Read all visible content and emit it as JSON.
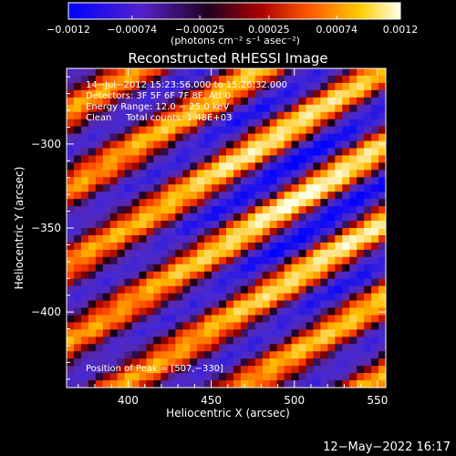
{
  "colorbar": {
    "ticks": [
      "−0.0012",
      "−0.00074",
      "−0.00025",
      "0.00025",
      "0.00074",
      "0.0012"
    ],
    "tick_values": [
      -0.0012,
      -0.00074,
      -0.00025,
      0.00025,
      0.00074,
      0.0012
    ],
    "range": [
      -0.0012,
      0.0012
    ],
    "unit_label": "(photons cm⁻² s⁻¹ asec⁻²)",
    "palette": [
      "#0000ff",
      "#6633cc",
      "#cc0033",
      "#ff6600",
      "#ffdd00",
      "#ffffff"
    ]
  },
  "chart_data": {
    "type": "heatmap",
    "title": "Reconstructed RHESSI Image",
    "xlabel": "Heliocentric X (arcsec)",
    "ylabel": "Heliocentric Y (arcsec)",
    "xlim": [
      363,
      555
    ],
    "ylim": [
      -445,
      -255
    ],
    "xticks": [
      400,
      450,
      500,
      550
    ],
    "yticks": [
      -300,
      -350,
      -400
    ],
    "xtick_labels": [
      "400",
      "450",
      "500",
      "550"
    ],
    "ytick_labels": [
      "−300",
      "−350",
      "−400"
    ],
    "annotations": {
      "line1": "14−Jul−2012 15:23:56.000 to 15:26:32.000",
      "line2": "Detectors: 3F 5F 6F 7F 8F, Att 0",
      "line3": "Energy Range: 12.0 − 25.0 keV",
      "line4": "Clean     Total counts: 1.48E+03"
    },
    "peak_label": "Position of Peak = [507,−330]",
    "peak": [
      507,
      -330
    ]
  },
  "footer": {
    "timestamp": "12−May−2022 16:17"
  }
}
